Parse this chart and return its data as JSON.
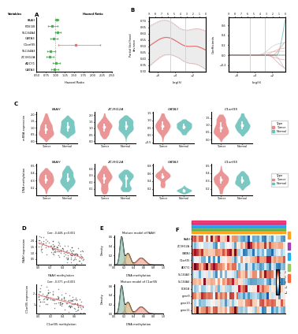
{
  "bg_color": "#ffffff",
  "panel_A": {
    "genes": [
      "FAAH",
      "PDE1B",
      "SLC44A4",
      "GATA3",
      "C1orf35",
      "SLC44A3",
      "ZC3H12A",
      "ADCY1",
      "GATA3"
    ],
    "hrs": [
      1.04,
      0.92,
      1.06,
      0.96,
      1.55,
      0.88,
      0.85,
      1.02,
      0.98
    ],
    "ci_lo": [
      1.0,
      0.8,
      0.99,
      0.88,
      1.08,
      0.78,
      0.76,
      0.93,
      0.89
    ],
    "ci_hi": [
      1.09,
      1.05,
      1.14,
      1.05,
      2.2,
      0.99,
      0.95,
      1.12,
      1.08
    ],
    "colors": [
      "#4CAF50",
      "#4CAF50",
      "#4CAF50",
      "#4CAF50",
      "#e57373",
      "#4CAF50",
      "#4CAF50",
      "#4CAF50",
      "#4CAF50"
    ]
  },
  "violin_genes": [
    "FAAH",
    "ZC3H12A",
    "GATA3",
    "C1orf35"
  ],
  "violin_tumor_color": "#e57373",
  "violin_normal_color": "#4db6ac",
  "mixture_color1": "#80b4a0",
  "mixture_color2": "#e8907a",
  "heatmap_annot_colors_top": [
    "#ff9800",
    "#4caf50",
    "#2196f3",
    "#e91e63"
  ],
  "heatmap_annot_colors_side": [
    "#ff5722",
    "#8bc34a",
    "#03a9f4",
    "#9c27b0",
    "#ff9800"
  ],
  "coef_colors": [
    "#80cbc4",
    "#ef9a9a",
    "#ef9a9a",
    "#ef9a9a",
    "#ef9a9a",
    "#ef9a9a",
    "#ef9a9a",
    "#bdbdbd",
    "#bdbdbd"
  ]
}
